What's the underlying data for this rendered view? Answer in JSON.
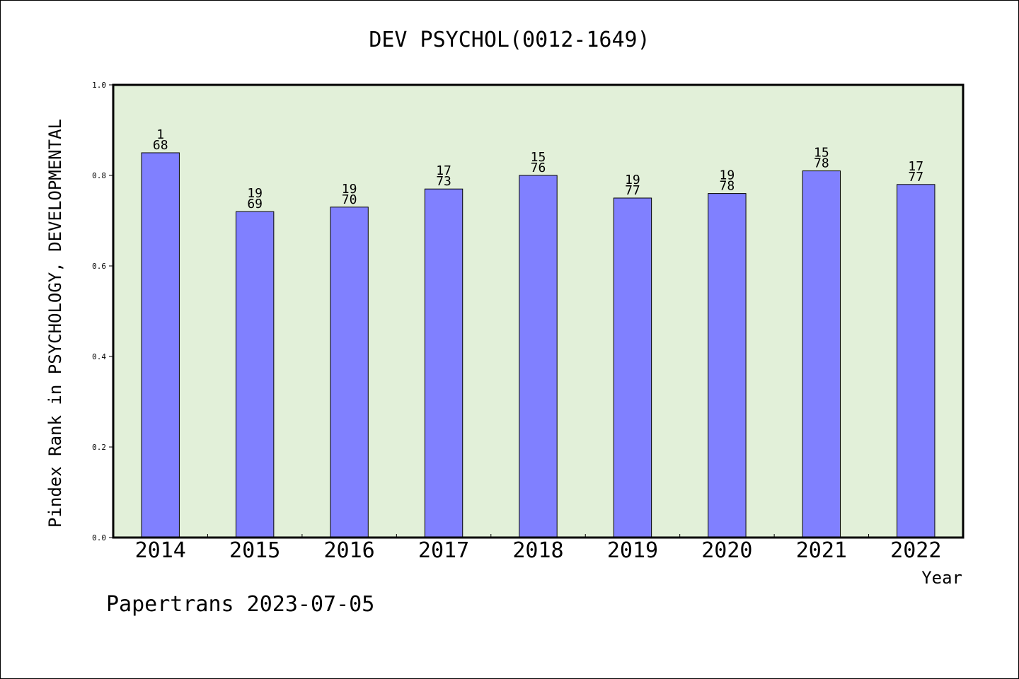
{
  "chart_data": {
    "type": "bar",
    "title": "DEV PSYCHOL(0012-1649)",
    "xlabel": "Year",
    "ylabel": "Pindex Rank in PSYCHOLOGY, DEVELOPMENTAL",
    "ylim": [
      0,
      1.0
    ],
    "yticks": [
      "0.0",
      "0.2",
      "0.4",
      "0.6",
      "0.8",
      "1.0"
    ],
    "categories": [
      "2014",
      "2015",
      "2016",
      "2017",
      "2018",
      "2019",
      "2020",
      "2021",
      "2022"
    ],
    "values": [
      0.85,
      0.72,
      0.73,
      0.77,
      0.8,
      0.75,
      0.76,
      0.81,
      0.78
    ],
    "labels_top": [
      "1",
      "19",
      "19",
      "17",
      "15",
      "19",
      "19",
      "15",
      "17"
    ],
    "labels_bottom": [
      "68",
      "69",
      "70",
      "73",
      "76",
      "77",
      "78",
      "78",
      "77"
    ],
    "bar_color": "#8080ff",
    "plot_background": "#e2f0d9",
    "grid": false,
    "legend": "none"
  },
  "footer": "Papertrans 2023-07-05"
}
